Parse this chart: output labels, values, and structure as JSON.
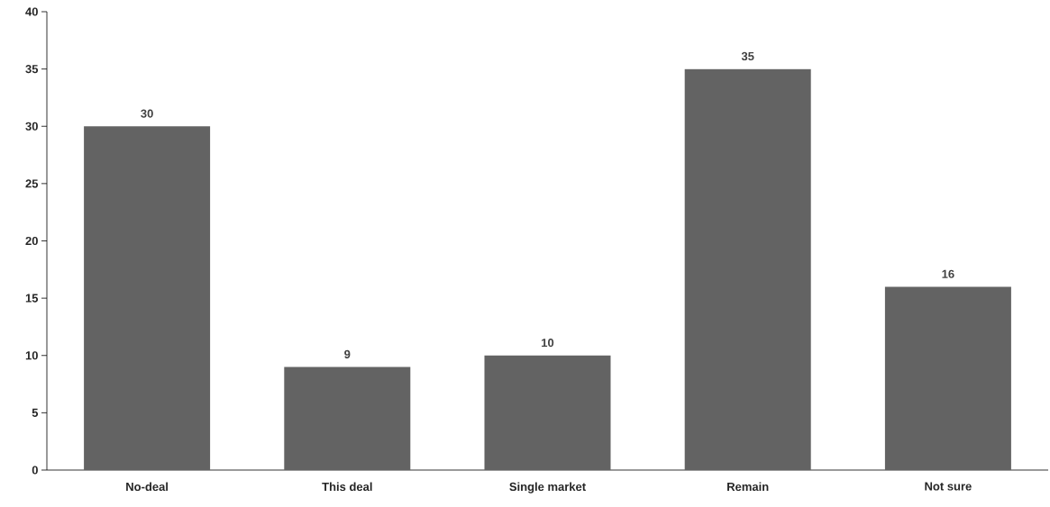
{
  "chart_data": {
    "type": "bar",
    "categories": [
      "No-deal",
      "This deal",
      "Single market",
      "Remain",
      "Not sure"
    ],
    "values": [
      30,
      9,
      10,
      35,
      16
    ],
    "color": "#636363",
    "ylim": [
      0,
      40
    ],
    "yticks": [
      0,
      5,
      10,
      15,
      20,
      25,
      30,
      35,
      40
    ],
    "data_labels": true
  }
}
